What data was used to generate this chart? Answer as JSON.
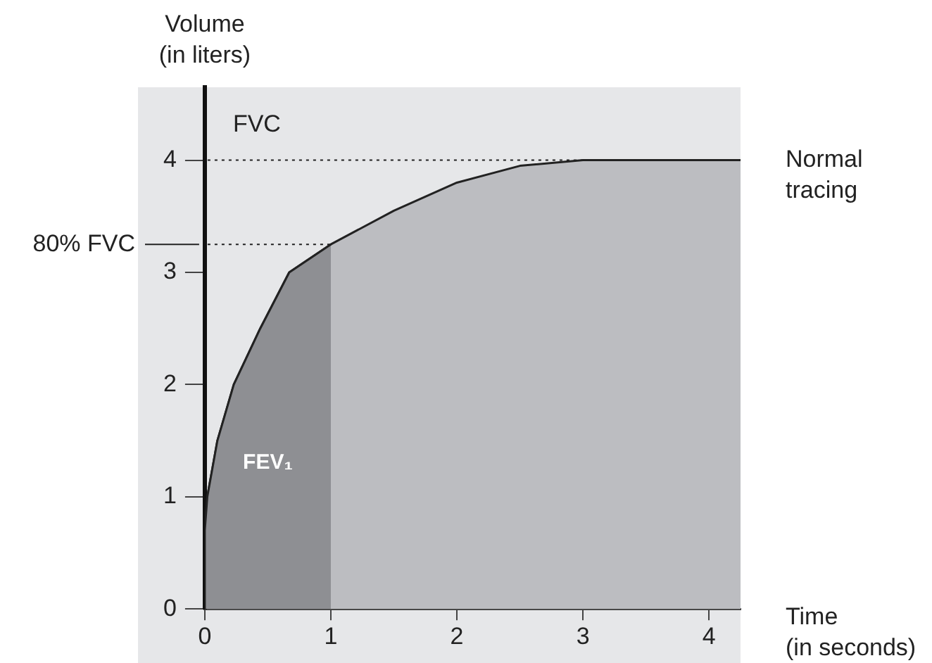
{
  "chart_data": {
    "type": "area",
    "xlabel": "Time\n(in seconds)",
    "ylabel": "Volume\n(in liters)",
    "xlim": [
      0,
      4.25
    ],
    "ylim": [
      0,
      4.65
    ],
    "xticks": [
      0,
      1,
      2,
      3,
      4
    ],
    "yticks": [
      0,
      1,
      2,
      3,
      4
    ],
    "grid": false,
    "legend": false,
    "marker": "none",
    "series": [
      {
        "name": "Normal tracing",
        "color": "#bcbdc1",
        "x": [
          0,
          0,
          0.02,
          0.1,
          0.23,
          0.44,
          0.67,
          1,
          1.5,
          2,
          2.5,
          3,
          4.25
        ],
        "values": [
          0,
          0.7,
          1,
          1.5,
          2,
          2.5,
          3,
          3.25,
          3.55,
          3.8,
          3.95,
          4,
          4
        ]
      },
      {
        "type": "area",
        "color": "#8e8f93",
        "x": [
          0,
          0,
          0.02,
          0.1,
          0.23,
          0.44,
          0.67,
          1
        ],
        "values": [
          0,
          0.7,
          1,
          1.5,
          2,
          2.5,
          3,
          3.25
        ]
      }
    ],
    "annotations": [
      "FEV₁"
    ],
    "ref_lines": [
      {
        "axis": "y",
        "value": 4,
        "label": "FVC",
        "line_style": "dotted"
      },
      {
        "axis": "y",
        "value": 3.25,
        "label": "80% FVC",
        "line_style": "dotted"
      }
    ]
  }
}
